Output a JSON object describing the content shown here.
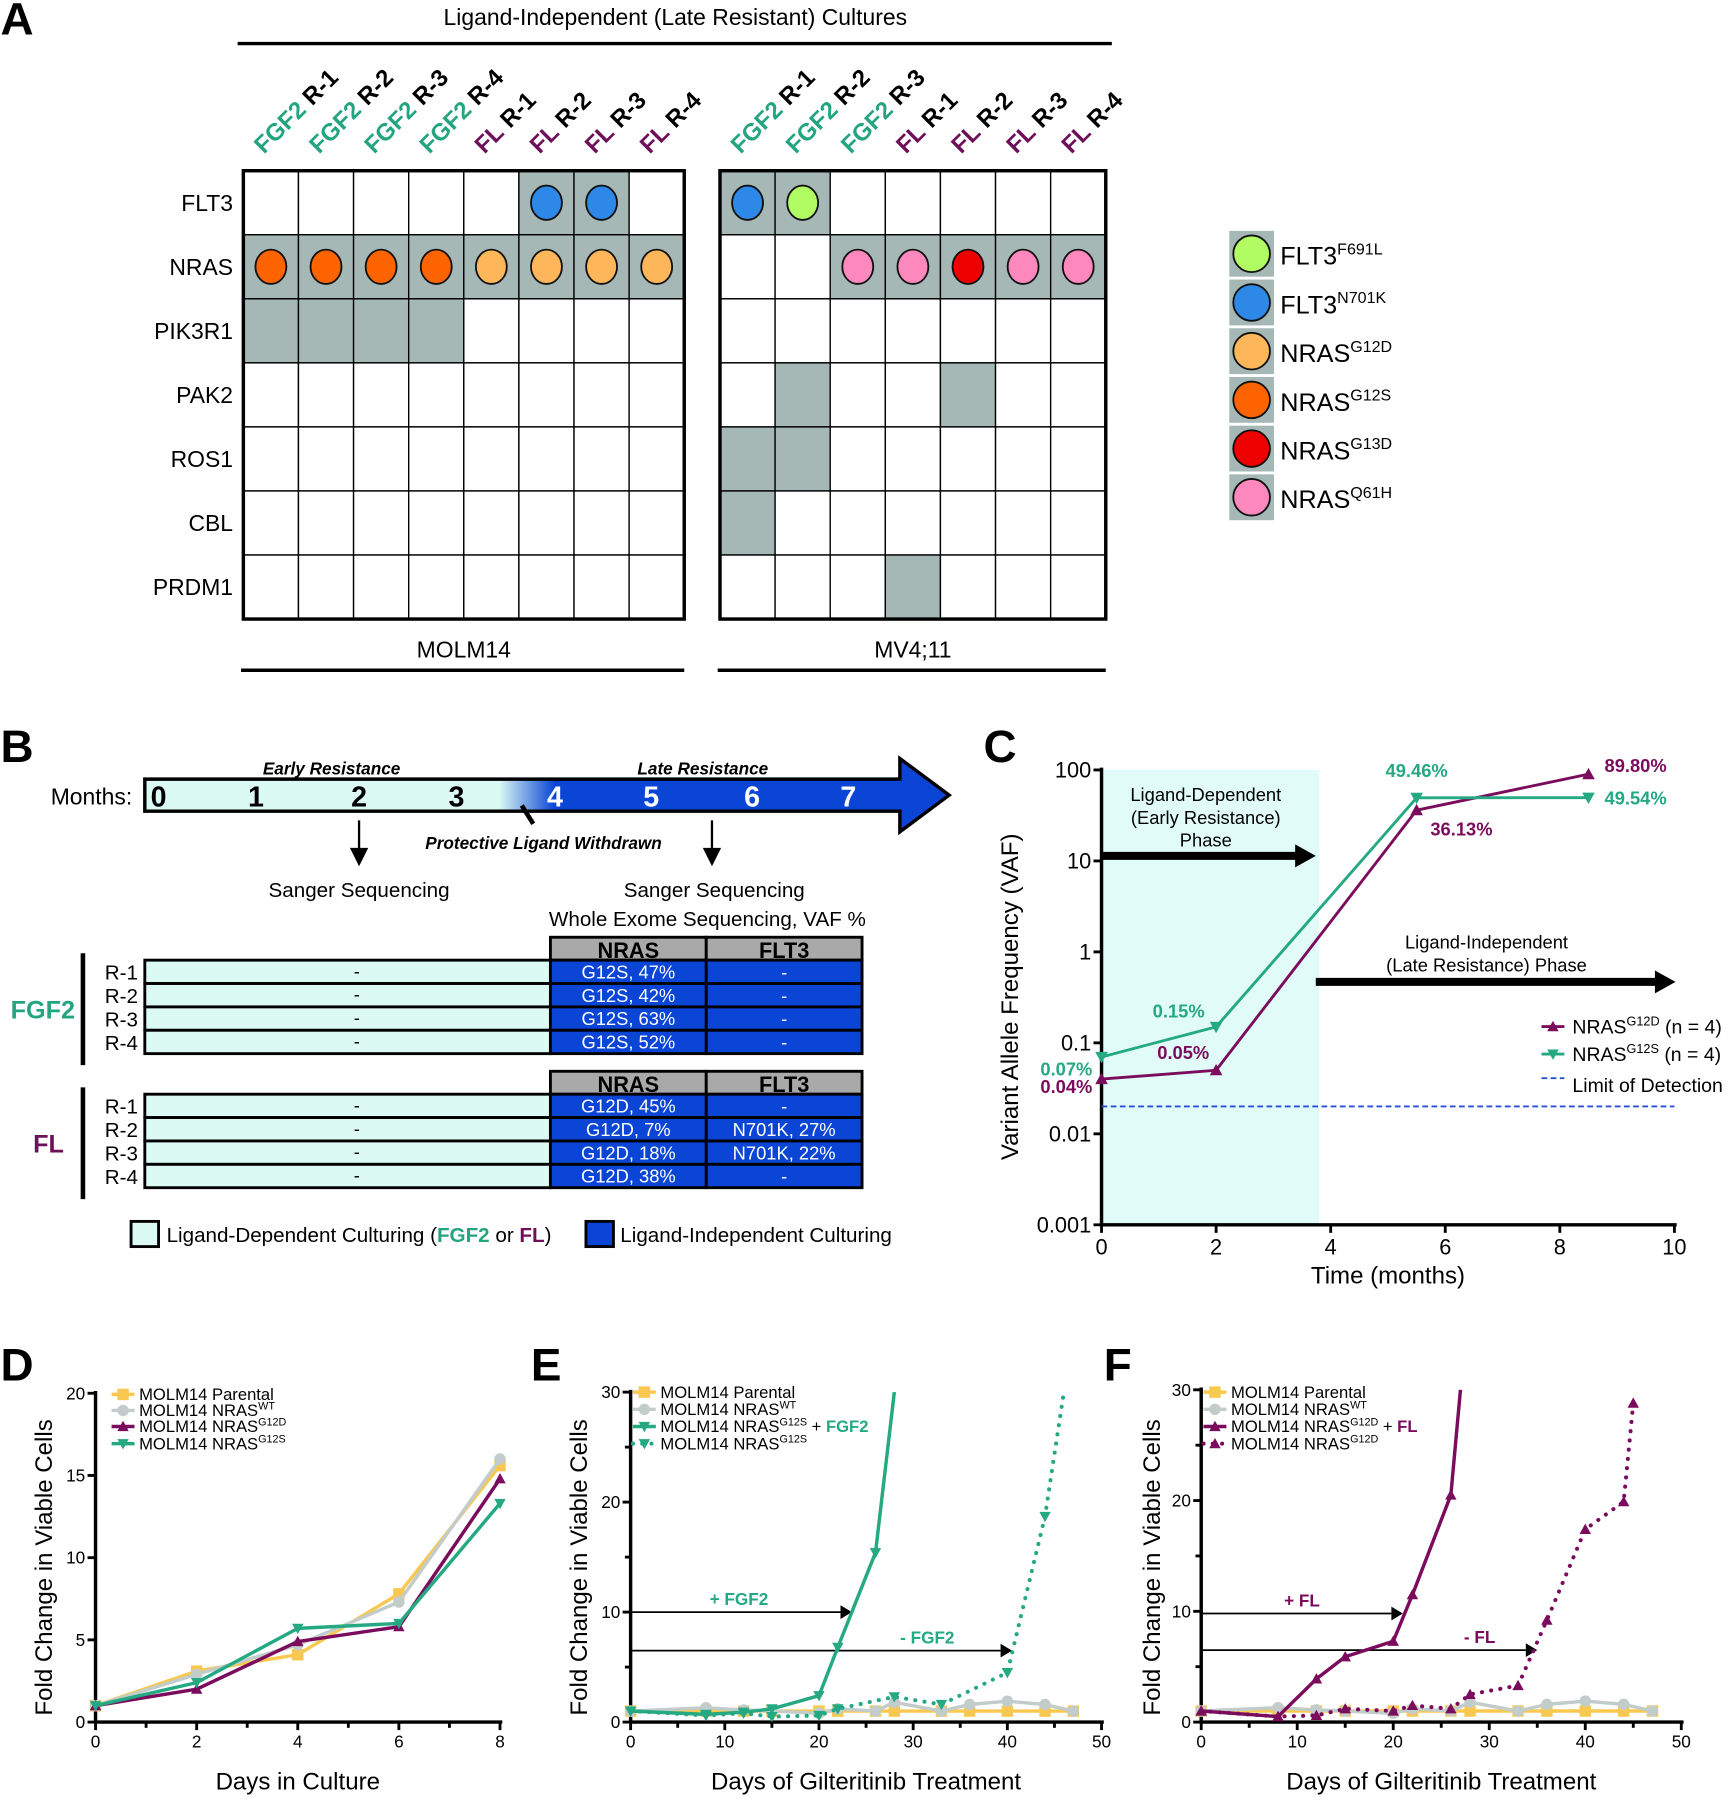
{
  "panel_labels": [
    "A",
    "B",
    "C",
    "D",
    "E",
    "F"
  ],
  "colors": {
    "fgf2": "#23a57f",
    "fl": "#6e0f5a",
    "shaded_cell": "#a6b8b5",
    "dependent_fill": "#dcfaf4",
    "independent_fill": "#0a45d6",
    "header_fill": "#a9a9a9",
    "parental": "#f9c850",
    "wt": "#c2cccb",
    "g12d": "#7b0c5d",
    "g12s": "#24a982",
    "lod": "#2a4fd6",
    "c_shade": "#e0fbf8"
  },
  "panel_a": {
    "title": "Ligand-Independent (Late Resistant) Cultures",
    "genes": [
      "FLT3",
      "NRAS",
      "PIK3R1",
      "PAK2",
      "ROS1",
      "CBL",
      "PRDM1"
    ],
    "cell_lines": [
      {
        "name": "MOLM14",
        "columns": [
          {
            "ligand": "FGF2",
            "rep": "R-1"
          },
          {
            "ligand": "FGF2",
            "rep": "R-2"
          },
          {
            "ligand": "FGF2",
            "rep": "R-3"
          },
          {
            "ligand": "FGF2",
            "rep": "R-4"
          },
          {
            "ligand": "FL",
            "rep": "R-1"
          },
          {
            "ligand": "FL",
            "rep": "R-2"
          },
          {
            "ligand": "FL",
            "rep": "R-3"
          },
          {
            "ligand": "FL",
            "rep": "R-4"
          }
        ],
        "cells": [
          [
            "",
            "",
            "",
            "",
            "",
            "FLT3-N701K",
            "FLT3-N701K",
            ""
          ],
          [
            "NRAS-G12S",
            "NRAS-G12S",
            "NRAS-G12S",
            "NRAS-G12S",
            "NRAS-G12D",
            "NRAS-G12D",
            "NRAS-G12D",
            "NRAS-G12D"
          ],
          [
            "x",
            "x",
            "x",
            "x",
            "",
            "",
            "",
            ""
          ],
          [
            "",
            "",
            "",
            "",
            "",
            "",
            "",
            ""
          ],
          [
            "",
            "",
            "",
            "",
            "",
            "",
            "",
            ""
          ],
          [
            "",
            "",
            "",
            "",
            "",
            "",
            "",
            ""
          ],
          [
            "",
            "",
            "",
            "",
            "",
            "",
            "",
            ""
          ]
        ]
      },
      {
        "name": "MV4;11",
        "columns": [
          {
            "ligand": "FGF2",
            "rep": "R-1"
          },
          {
            "ligand": "FGF2",
            "rep": "R-2"
          },
          {
            "ligand": "FGF2",
            "rep": "R-3"
          },
          {
            "ligand": "FL",
            "rep": "R-1"
          },
          {
            "ligand": "FL",
            "rep": "R-2"
          },
          {
            "ligand": "FL",
            "rep": "R-3"
          },
          {
            "ligand": "FL",
            "rep": "R-4"
          }
        ],
        "cells": [
          [
            "FLT3-N701K",
            "FLT3-F691L",
            "",
            "",
            "",
            "",
            ""
          ],
          [
            "",
            "",
            "NRAS-Q61H",
            "NRAS-Q61H",
            "NRAS-G13D",
            "NRAS-Q61H",
            "NRAS-Q61H"
          ],
          [
            "",
            "",
            "",
            "",
            "",
            "",
            ""
          ],
          [
            "",
            "x",
            "",
            "",
            "x",
            "",
            ""
          ],
          [
            "x",
            "x",
            "",
            "",
            "",
            "",
            ""
          ],
          [
            "x",
            "",
            "",
            "",
            "",
            "",
            ""
          ],
          [
            "",
            "",
            "",
            "x",
            "",
            "",
            ""
          ]
        ]
      }
    ],
    "legend": [
      {
        "key": "FLT3-F691L",
        "gene": "FLT3",
        "variant": "F691L",
        "color": "#b0fc62"
      },
      {
        "key": "FLT3-N701K",
        "gene": "FLT3",
        "variant": "N701K",
        "color": "#2e88e8"
      },
      {
        "key": "NRAS-G12D",
        "gene": "NRAS",
        "variant": "G12D",
        "color": "#fdb75a"
      },
      {
        "key": "NRAS-G12S",
        "gene": "NRAS",
        "variant": "G12S",
        "color": "#fd6400"
      },
      {
        "key": "NRAS-G13D",
        "gene": "NRAS",
        "variant": "G13D",
        "color": "#ee0000"
      },
      {
        "key": "NRAS-Q61H",
        "gene": "NRAS",
        "variant": "Q61H",
        "color": "#fd88bd"
      }
    ]
  },
  "panel_b": {
    "months_label": "Months:",
    "months": [
      "0",
      "1",
      "2",
      "3",
      "4",
      "5",
      "6",
      "7"
    ],
    "early": "Early Resistance",
    "late": "Late Resistance",
    "withdrawn": "Protective Ligand Withdrawn",
    "sanger_early": "Sanger Sequencing",
    "sanger_late": "Sanger Sequencing",
    "wes": "Whole Exome Sequencing, VAF %",
    "columns": [
      "NRAS",
      "FLT3"
    ],
    "groups": [
      {
        "ligand": "FGF2",
        "rows": [
          {
            "rep": "R-1",
            "early": "-",
            "nras": "G12S, 47%",
            "flt3": "-"
          },
          {
            "rep": "R-2",
            "early": "-",
            "nras": "G12S, 42%",
            "flt3": "-"
          },
          {
            "rep": "R-3",
            "early": "-",
            "nras": "G12S, 63%",
            "flt3": "-"
          },
          {
            "rep": "R-4",
            "early": "-",
            "nras": "G12S, 52%",
            "flt3": "-"
          }
        ]
      },
      {
        "ligand": "FL",
        "rows": [
          {
            "rep": "R-1",
            "early": "-",
            "nras": "G12D, 45%",
            "flt3": "-"
          },
          {
            "rep": "R-2",
            "early": "-",
            "nras": "G12D, 7%",
            "flt3": "N701K, 27%"
          },
          {
            "rep": "R-3",
            "early": "-",
            "nras": "G12D, 18%",
            "flt3": "N701K, 22%"
          },
          {
            "rep": "R-4",
            "early": "-",
            "nras": "G12D, 38%",
            "flt3": "-"
          }
        ]
      }
    ],
    "legend": {
      "dependent_prefix": "Ligand-Dependent Culturing (",
      "fgf2": "FGF2",
      "or": " or ",
      "fl": "FL",
      "suffix": ")",
      "independent": "Ligand-Independent Culturing"
    }
  },
  "chart_data": [
    {
      "id": "C",
      "type": "line",
      "xlabel": "Time (months)",
      "ylabel": "Variant Allele Frequency (VAF)",
      "xlim": [
        0,
        10
      ],
      "ylim": [
        0.001,
        100
      ],
      "yscale": "log",
      "xticks": [
        0,
        2,
        4,
        6,
        8,
        10
      ],
      "xtick_labels": [
        "0",
        "2",
        "4",
        "6",
        "8",
        "10"
      ],
      "yticks": [
        0.001,
        0.01,
        0.1,
        1,
        10,
        100
      ],
      "ytick_labels": [
        "0.001",
        "0.01",
        "0.1",
        "1",
        "10",
        "100"
      ],
      "shaded_region": {
        "x": [
          0,
          3.8
        ],
        "label": [
          "Ligand-Dependent",
          "(Early Resistance)",
          "Phase"
        ]
      },
      "late_phase_label": [
        "Ligand-Independent",
        "(Late Resistance) Phase"
      ],
      "limit_of_detection": 0.02,
      "lod_label": "Limit of Detection",
      "legend_position": "right",
      "series": [
        {
          "name": "NRAS",
          "sup": "G12D",
          "n_label": "(n = 4)",
          "color": "#7b0c5d",
          "marker": "triangle-up",
          "x": [
            0,
            2,
            5.5,
            8.5
          ],
          "y": [
            0.04,
            0.05,
            36.13,
            89.8
          ],
          "labels": [
            "0.04%",
            "0.05%",
            "36.13%",
            "89.80%"
          ]
        },
        {
          "name": "NRAS",
          "sup": "G12S",
          "n_label": "(n = 4)",
          "color": "#24a982",
          "marker": "triangle-down",
          "x": [
            0,
            2,
            5.5,
            8.5
          ],
          "y": [
            0.07,
            0.15,
            49.46,
            49.54
          ],
          "labels": [
            "0.07%",
            "0.15%",
            "49.46%",
            "49.54%"
          ]
        }
      ]
    },
    {
      "id": "D",
      "type": "line",
      "xlabel": "Days in Culture",
      "ylabel": "Fold Change in Viable Cells",
      "xlim": [
        0,
        8
      ],
      "ylim": [
        0,
        20
      ],
      "xticks": [
        0,
        2,
        4,
        6,
        8
      ],
      "xtick_labels": [
        "0",
        "2",
        "4",
        "6",
        "8"
      ],
      "yticks": [
        0,
        5,
        10,
        15,
        20
      ],
      "ytick_labels": [
        "0",
        "5",
        "10",
        "15",
        "20"
      ],
      "legend_position": "top-left",
      "series": [
        {
          "name": "MOLM14 Parental",
          "sup": "",
          "color": "#f9c850",
          "marker": "square",
          "style": "solid",
          "x": [
            0,
            2,
            4,
            6,
            8
          ],
          "y": [
            1,
            3.1,
            4.1,
            7.8,
            15.6
          ]
        },
        {
          "name": "MOLM14 NRAS",
          "sup": "WT",
          "color": "#c2cccb",
          "marker": "circle",
          "style": "solid",
          "x": [
            0,
            2,
            4,
            6,
            8
          ],
          "y": [
            1,
            2.9,
            4.7,
            7.3,
            16.0
          ]
        },
        {
          "name": "MOLM14 NRAS",
          "sup": "G12D",
          "color": "#7b0c5d",
          "marker": "triangle-up",
          "style": "solid",
          "x": [
            0,
            2,
            4,
            6,
            8
          ],
          "y": [
            1,
            2.0,
            4.9,
            5.8,
            14.8
          ]
        },
        {
          "name": "MOLM14 NRAS",
          "sup": "G12S",
          "color": "#24a982",
          "marker": "triangle-down",
          "style": "solid",
          "x": [
            0,
            2,
            4,
            6,
            8
          ],
          "y": [
            1,
            2.4,
            5.7,
            6.0,
            13.3
          ]
        }
      ]
    },
    {
      "id": "E",
      "type": "line",
      "xlabel": "Days of Gilteritinib Treatment",
      "ylabel": "Fold Change in Viable Cells",
      "xlim": [
        0,
        50
      ],
      "ylim": [
        0,
        30
      ],
      "xticks": [
        0,
        10,
        20,
        30,
        40,
        50
      ],
      "xtick_labels": [
        "0",
        "10",
        "20",
        "30",
        "40",
        "50"
      ],
      "yticks": [
        0,
        10,
        20,
        30
      ],
      "ytick_labels": [
        "0",
        "10",
        "20",
        "30"
      ],
      "legend_position": "top-left",
      "annotations": [
        {
          "label": "+ FGF2",
          "y": 10,
          "x_end": 23.5,
          "color": "#24a982"
        },
        {
          "label": "- FGF2",
          "y": 6.5,
          "x_end": 40.5,
          "color": "#24a982"
        }
      ],
      "series": [
        {
          "name": "MOLM14 Parental",
          "sup": "",
          "suffix": "",
          "color": "#f9c850",
          "marker": "square",
          "style": "solid",
          "x": [
            0,
            8,
            12,
            15,
            20,
            22,
            26,
            28,
            33,
            36,
            40,
            44,
            47
          ],
          "y": [
            1,
            1,
            1,
            1,
            1,
            1,
            1,
            1,
            1,
            1,
            1,
            1,
            1
          ]
        },
        {
          "name": "MOLM14 NRAS",
          "sup": "WT",
          "suffix": "",
          "color": "#c2cccb",
          "marker": "circle",
          "style": "solid",
          "x": [
            0,
            8,
            12,
            15,
            20,
            22,
            26,
            28,
            33,
            36,
            40,
            44,
            47
          ],
          "y": [
            1,
            1.3,
            1.1,
            1.0,
            0.8,
            1.2,
            1.0,
            1.8,
            1.0,
            1.6,
            1.9,
            1.6,
            1.0
          ]
        },
        {
          "name": "MOLM14 NRAS",
          "sup": "G12S",
          "suffix": "+ FGF2",
          "color": "#24a982",
          "marker": "triangle-down",
          "style": "solid",
          "x": [
            0,
            8,
            12,
            15,
            20,
            22,
            26,
            28
          ],
          "y": [
            1,
            0.7,
            0.9,
            1.2,
            2.4,
            6.8,
            15.4,
            30
          ]
        },
        {
          "name": "MOLM14 NRAS",
          "sup": "G12S",
          "suffix": "",
          "color": "#24a982",
          "marker": "triangle-down",
          "style": "dotted",
          "x": [
            0,
            8,
            12,
            15,
            20,
            22,
            28,
            33,
            40,
            44,
            46
          ],
          "y": [
            1,
            0.6,
            0.8,
            0.5,
            0.6,
            1.2,
            2.3,
            1.6,
            4.5,
            18.7,
            30
          ]
        }
      ]
    },
    {
      "id": "F",
      "type": "line",
      "xlabel": "Days of Gilteritinib Treatment",
      "ylabel": "Fold Change in Viable Cells",
      "xlim": [
        0,
        50
      ],
      "ylim": [
        0,
        30
      ],
      "xticks": [
        0,
        10,
        20,
        30,
        40,
        50
      ],
      "xtick_labels": [
        "0",
        "10",
        "20",
        "30",
        "40",
        "50"
      ],
      "yticks": [
        0,
        10,
        20,
        30
      ],
      "ytick_labels": [
        "0",
        "10",
        "20",
        "30"
      ],
      "legend_position": "top-left",
      "annotations": [
        {
          "label": "+ FL",
          "y": 9.8,
          "x_end": 21,
          "color": "#7b0c5d"
        },
        {
          "label": "- FL",
          "y": 6.5,
          "x_end": 35,
          "color": "#7b0c5d"
        }
      ],
      "series": [
        {
          "name": "MOLM14 Parental",
          "sup": "",
          "suffix": "",
          "color": "#f9c850",
          "marker": "square",
          "style": "solid",
          "x": [
            0,
            8,
            12,
            15,
            20,
            22,
            26,
            28,
            33,
            36,
            40,
            44,
            47
          ],
          "y": [
            1,
            1,
            1,
            1,
            1,
            1,
            1,
            1,
            1,
            1,
            1,
            1,
            1
          ]
        },
        {
          "name": "MOLM14 NRAS",
          "sup": "WT",
          "suffix": "",
          "color": "#c2cccb",
          "marker": "circle",
          "style": "solid",
          "x": [
            0,
            8,
            12,
            15,
            20,
            22,
            26,
            28,
            33,
            36,
            40,
            44,
            47
          ],
          "y": [
            1,
            1.3,
            1.1,
            1.0,
            0.8,
            1.2,
            1.0,
            1.8,
            1.0,
            1.6,
            1.9,
            1.6,
            1.0
          ]
        },
        {
          "name": "MOLM14 NRAS",
          "sup": "G12D",
          "suffix": "+ FL",
          "color": "#7b0c5d",
          "marker": "triangle-up",
          "style": "solid",
          "x": [
            0,
            8,
            12,
            15,
            20,
            22,
            26,
            27
          ],
          "y": [
            1,
            0.5,
            3.9,
            5.9,
            7.3,
            11.5,
            20.5,
            30
          ]
        },
        {
          "name": "MOLM14 NRAS",
          "sup": "G12D",
          "suffix": "",
          "color": "#7b0c5d",
          "marker": "triangle-up",
          "style": "dotted",
          "x": [
            0,
            8,
            12,
            15,
            20,
            22,
            26,
            28,
            33,
            36,
            40,
            44,
            45
          ],
          "y": [
            1,
            0.5,
            0.6,
            1.2,
            1.0,
            1.5,
            1.2,
            2.5,
            3.3,
            9.2,
            17.4,
            19.9,
            28.8
          ]
        }
      ]
    }
  ]
}
